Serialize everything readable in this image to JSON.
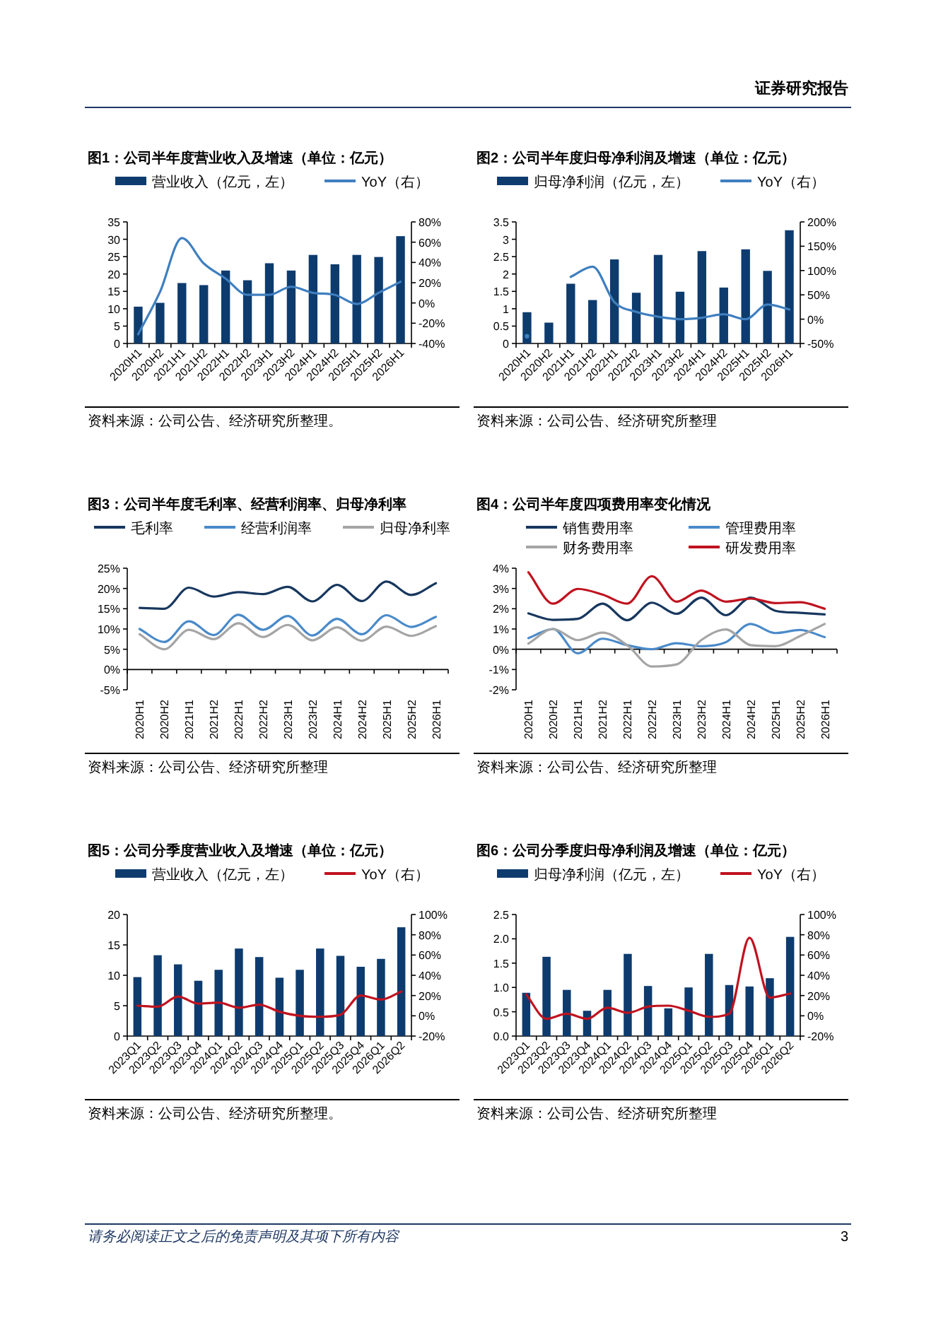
{
  "chart_data": [
    {
      "type": "bar",
      "title": "图1：公司半年度营业收入及增速（单位：亿元）",
      "categories": [
        "2020H1",
        "2020H2",
        "2021H1",
        "2021H2",
        "2022H1",
        "2022H2",
        "2023H1",
        "2023H2",
        "2024H1",
        "2024H2",
        "2025H1",
        "2025H2",
        "2026H1"
      ],
      "series": [
        {
          "name": "营业收入（亿元，左）",
          "color": "#0d3b6e",
          "values": [
            10.6,
            11.7,
            17.4,
            16.8,
            21.0,
            18.2,
            23.1,
            21.0,
            25.5,
            22.8,
            25.5,
            24.9,
            30.9
          ]
        },
        {
          "name": "YoY（右）",
          "type": "line",
          "axis": "y2",
          "color": "#3f7fbf",
          "values": [
            -31,
            11,
            64,
            39,
            24,
            8,
            8,
            16,
            10,
            8,
            -1,
            10,
            21
          ]
        }
      ],
      "ylim": [
        0,
        35
      ],
      "yticks": [
        0,
        5,
        10,
        15,
        20,
        25,
        30,
        35
      ],
      "y2lim": [
        -40,
        80
      ],
      "y2ticks": [
        {
          "value": -40,
          "label": "-40%"
        },
        {
          "value": -20,
          "label": "-20%"
        },
        {
          "value": 0,
          "label": "0%"
        },
        {
          "value": 20,
          "label": "20%"
        },
        {
          "value": 40,
          "label": "40%"
        },
        {
          "value": 60,
          "label": "60%"
        },
        {
          "value": 80,
          "label": "80%"
        }
      ],
      "legend": "top",
      "annotations": [
        "资料来源：公司公告、经济研究所整理。",
        "证券研究报告"
      ]
    },
    {
      "type": "bar",
      "title": "图2：公司半年度归母净利润及增速（单位：亿元）",
      "categories": [
        "2020H1",
        "2020H2",
        "2021H1",
        "2021H2",
        "2022H1",
        "2022H2",
        "2023H1",
        "2023H2",
        "2024H1",
        "2024H2",
        "2025H1",
        "2025H2",
        "2026H1"
      ],
      "series": [
        {
          "name": "归母净利润（亿元，左）",
          "color": "#0d3b6e",
          "values": [
            0.9,
            0.6,
            1.72,
            1.25,
            2.42,
            1.46,
            2.55,
            1.49,
            2.66,
            1.61,
            2.71,
            2.09,
            3.26
          ]
        },
        {
          "name": "YoY（右）",
          "type": "line",
          "axis": "y2",
          "color": "#3f7fbf",
          "values": [
            -35,
            null,
            87,
            108,
            35,
            15,
            5,
            0,
            3,
            10,
            0,
            30,
            20
          ]
        }
      ],
      "ylim": [
        0,
        3.5
      ],
      "yticks": [
        0,
        0.5,
        1,
        1.5,
        2,
        2.5,
        3,
        3.5
      ],
      "y2lim": [
        -50,
        200
      ],
      "y2ticks": [
        {
          "value": -50,
          "label": "-50%"
        },
        {
          "value": 0,
          "label": "0%"
        },
        {
          "value": 50,
          "label": "50%"
        },
        {
          "value": 100,
          "label": "100%"
        },
        {
          "value": 150,
          "label": "150%"
        },
        {
          "value": 200,
          "label": "200%"
        }
      ],
      "legend": "top",
      "annotations": [
        "资料来源：公司公告、经济研究所整理"
      ]
    },
    {
      "type": "line",
      "title": "图3：公司半年度毛利率、经营利润率、归母净利率",
      "categories": [
        "2020H1",
        "2020H2",
        "2021H1",
        "2021H2",
        "2022H1",
        "2022H2",
        "2023H1",
        "2023H2",
        "2024H1",
        "2024H2",
        "2025H1",
        "2025H2",
        "2026H1"
      ],
      "series": [
        {
          "name": "毛利率",
          "color": "#17375e",
          "values": [
            15.2,
            15.0,
            20.2,
            18.0,
            19.1,
            18.6,
            20.4,
            16.8,
            20.9,
            16.9,
            21.7,
            18.4,
            21.3
          ]
        },
        {
          "name": "经营利润率",
          "color": "#4a8ac9",
          "values": [
            10.0,
            6.8,
            11.9,
            8.5,
            13.5,
            9.8,
            13.2,
            8.4,
            12.5,
            8.7,
            13.4,
            10.5,
            13.0
          ]
        },
        {
          "name": "归母净利率",
          "color": "#a5a5a5",
          "values": [
            8.7,
            5.0,
            9.8,
            7.5,
            11.4,
            8.0,
            11.0,
            7.2,
            10.4,
            7.1,
            10.6,
            8.3,
            10.7
          ]
        }
      ],
      "ylim": [
        -5,
        25
      ],
      "yticks": [
        {
          "value": -5,
          "label": "-5%"
        },
        {
          "value": 0,
          "label": "0%"
        },
        {
          "value": 5,
          "label": "5%"
        },
        {
          "value": 10,
          "label": "10%"
        },
        {
          "value": 15,
          "label": "15%"
        },
        {
          "value": 20,
          "label": "20%"
        },
        {
          "value": 25,
          "label": "25%"
        }
      ],
      "legend": "top",
      "annotations": [
        "资料来源：公司公告、经济研究所整理"
      ]
    },
    {
      "type": "line",
      "title": "图4：公司半年度四项费用率变化情况",
      "categories": [
        "2020H1",
        "2020H2",
        "2021H1",
        "2021H2",
        "2022H1",
        "2022H2",
        "2023H1",
        "2023H2",
        "2024H1",
        "2024H2",
        "2025H1",
        "2025H2",
        "2026H1"
      ],
      "series": [
        {
          "name": "销售费用率",
          "color": "#17375e",
          "values": [
            1.77,
            1.45,
            1.5,
            2.25,
            1.43,
            2.3,
            1.75,
            2.55,
            1.68,
            2.55,
            1.9,
            1.8,
            1.72
          ]
        },
        {
          "name": "管理费用率",
          "color": "#4a8ac9",
          "values": [
            0.55,
            1.0,
            -0.2,
            0.52,
            0.2,
            0.0,
            0.3,
            0.15,
            0.35,
            1.25,
            0.8,
            0.95,
            0.6
          ]
        },
        {
          "name": "财务费用率",
          "color": "#a5a5a5",
          "values": [
            0.28,
            1.0,
            0.45,
            0.82,
            0.2,
            -0.85,
            -0.75,
            0.45,
            0.98,
            0.2,
            0.15,
            0.65,
            1.25
          ]
        },
        {
          "name": "研发费用率",
          "color": "#c0121f",
          "values": [
            3.8,
            2.25,
            2.98,
            2.7,
            2.25,
            3.6,
            2.35,
            2.9,
            2.35,
            2.5,
            2.28,
            2.32,
            2.0
          ]
        }
      ],
      "ylim": [
        -2,
        4
      ],
      "yticks": [
        {
          "value": -2,
          "label": "-2%"
        },
        {
          "value": -1,
          "label": "-1%"
        },
        {
          "value": 0,
          "label": "0%"
        },
        {
          "value": 1,
          "label": "1%"
        },
        {
          "value": 2,
          "label": "2%"
        },
        {
          "value": 3,
          "label": "3%"
        },
        {
          "value": 4,
          "label": "4%"
        }
      ],
      "legend": "top",
      "annotations": [
        "资料来源：公司公告、经济研究所整理"
      ]
    },
    {
      "type": "bar",
      "title": "图5：公司分季度营业收入及增速（单位：亿元）",
      "categories": [
        "2023Q1",
        "2023Q2",
        "2023Q3",
        "2023Q4",
        "2024Q1",
        "2024Q2",
        "2024Q3",
        "2024Q4",
        "2025Q1",
        "2025Q2",
        "2025Q3",
        "2025Q4",
        "2026Q1",
        "2026Q2"
      ],
      "series": [
        {
          "name": "营业收入（亿元，左）",
          "color": "#0d3b6e",
          "values": [
            9.7,
            13.3,
            11.8,
            9.1,
            10.9,
            14.4,
            13.0,
            9.6,
            10.9,
            14.4,
            13.2,
            11.4,
            12.7,
            17.9
          ]
        },
        {
          "name": "YoY（右）",
          "type": "line",
          "axis": "y2",
          "color": "#c0121f",
          "values": [
            10,
            9,
            19,
            12,
            13,
            8,
            11,
            4,
            0,
            -1,
            1,
            20,
            16,
            24
          ]
        }
      ],
      "ylim": [
        0,
        20
      ],
      "yticks": [
        0,
        5,
        10,
        15,
        20
      ],
      "y2lim": [
        -20,
        100
      ],
      "y2ticks": [
        {
          "value": -20,
          "label": "-20%"
        },
        {
          "value": 0,
          "label": "0%"
        },
        {
          "value": 20,
          "label": "20%"
        },
        {
          "value": 40,
          "label": "40%"
        },
        {
          "value": 60,
          "label": "60%"
        },
        {
          "value": 80,
          "label": "80%"
        },
        {
          "value": 100,
          "label": "100%"
        }
      ],
      "legend": "top",
      "annotations": [
        "资料来源：公司公告、经济研究所整理。"
      ]
    },
    {
      "type": "bar",
      "title": "图6：公司分季度归母净利润及增速（单位：亿元）",
      "categories": [
        "2023Q1",
        "2023Q2",
        "2023Q3",
        "2023Q4",
        "2024Q1",
        "2024Q2",
        "2024Q3",
        "2024Q4",
        "2025Q1",
        "2025Q2",
        "2025Q3",
        "2025Q4",
        "2026Q1",
        "2026Q2"
      ],
      "series": [
        {
          "name": "归母净利润（亿元，左）",
          "color": "#0d3b6e",
          "values": [
            0.89,
            1.63,
            0.95,
            0.52,
            0.95,
            1.69,
            1.03,
            0.57,
            1.0,
            1.69,
            1.05,
            1.02,
            1.19,
            2.04
          ]
        },
        {
          "name": "YoY（右）",
          "type": "line",
          "axis": "y2",
          "color": "#c0121f",
          "values": [
            21,
            -3,
            2,
            -3,
            8,
            3,
            9,
            10,
            5,
            -1,
            2,
            77,
            18,
            22
          ]
        }
      ],
      "ylim": [
        0,
        2.5
      ],
      "yticks": [
        {
          "value": 0,
          "label": "0.0"
        },
        0.5,
        {
          "value": 1,
          "label": "1.0"
        },
        1.5,
        {
          "value": 2,
          "label": "2.0"
        },
        2.5
      ],
      "y2lim": [
        -20,
        100
      ],
      "y2ticks": [
        {
          "value": -20,
          "label": "-20%"
        },
        {
          "value": 0,
          "label": "0%"
        },
        {
          "value": 20,
          "label": "20%"
        },
        {
          "value": 40,
          "label": "40%"
        },
        {
          "value": 60,
          "label": "60%"
        },
        {
          "value": 80,
          "label": "80%"
        },
        {
          "value": 100,
          "label": "100%"
        }
      ],
      "legend": "top",
      "annotations": [
        "资料来源：公司公告、经济研究所整理",
        "请务必阅读正文之后的免责声明及其项下所有内容",
        "3"
      ]
    }
  ]
}
